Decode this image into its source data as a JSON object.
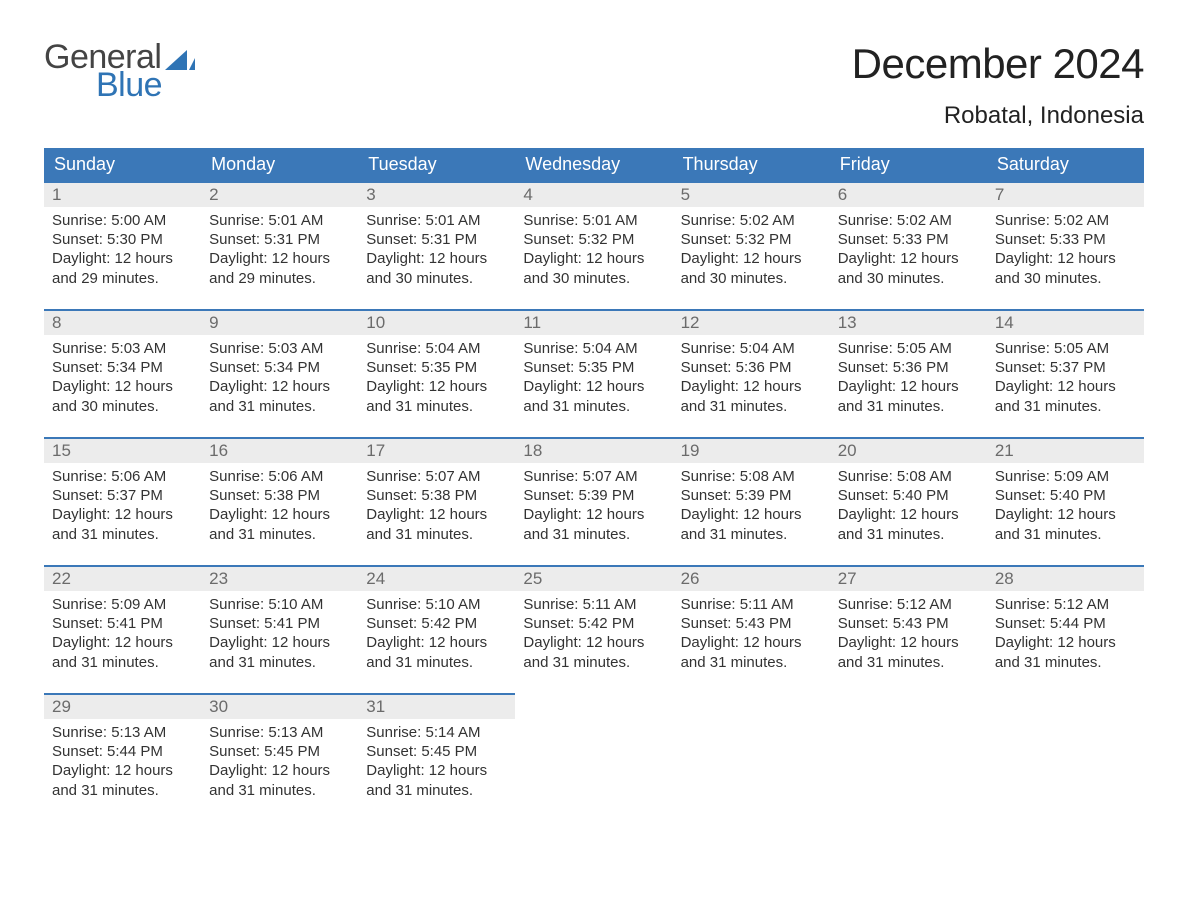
{
  "brand": {
    "word1": "General",
    "word2": "Blue",
    "text_color": "#444444",
    "accent_color": "#2f74b5"
  },
  "title": "December 2024",
  "location": "Robatal, Indonesia",
  "colors": {
    "header_bg": "#3b78b8",
    "header_text": "#ffffff",
    "row_top_border": "#3b78b8",
    "daynum_bg": "#ececec",
    "daynum_text": "#6b6b6b",
    "body_text": "#333333",
    "page_bg": "#ffffff"
  },
  "font": {
    "family": "Arial",
    "title_size_pt": 32,
    "location_size_pt": 18,
    "header_size_pt": 14,
    "body_size_pt": 11
  },
  "weekdays": [
    "Sunday",
    "Monday",
    "Tuesday",
    "Wednesday",
    "Thursday",
    "Friday",
    "Saturday"
  ],
  "labels": {
    "sunrise": "Sunrise:",
    "sunset": "Sunset:",
    "daylight": "Daylight:"
  },
  "grid": {
    "cols": 7,
    "rows": 5,
    "first_weekday_index": 0,
    "days_in_month": 31
  },
  "days": [
    {
      "n": 1,
      "sunrise": "5:00 AM",
      "sunset": "5:30 PM",
      "daylight": "12 hours and 29 minutes."
    },
    {
      "n": 2,
      "sunrise": "5:01 AM",
      "sunset": "5:31 PM",
      "daylight": "12 hours and 29 minutes."
    },
    {
      "n": 3,
      "sunrise": "5:01 AM",
      "sunset": "5:31 PM",
      "daylight": "12 hours and 30 minutes."
    },
    {
      "n": 4,
      "sunrise": "5:01 AM",
      "sunset": "5:32 PM",
      "daylight": "12 hours and 30 minutes."
    },
    {
      "n": 5,
      "sunrise": "5:02 AM",
      "sunset": "5:32 PM",
      "daylight": "12 hours and 30 minutes."
    },
    {
      "n": 6,
      "sunrise": "5:02 AM",
      "sunset": "5:33 PM",
      "daylight": "12 hours and 30 minutes."
    },
    {
      "n": 7,
      "sunrise": "5:02 AM",
      "sunset": "5:33 PM",
      "daylight": "12 hours and 30 minutes."
    },
    {
      "n": 8,
      "sunrise": "5:03 AM",
      "sunset": "5:34 PM",
      "daylight": "12 hours and 30 minutes."
    },
    {
      "n": 9,
      "sunrise": "5:03 AM",
      "sunset": "5:34 PM",
      "daylight": "12 hours and 31 minutes."
    },
    {
      "n": 10,
      "sunrise": "5:04 AM",
      "sunset": "5:35 PM",
      "daylight": "12 hours and 31 minutes."
    },
    {
      "n": 11,
      "sunrise": "5:04 AM",
      "sunset": "5:35 PM",
      "daylight": "12 hours and 31 minutes."
    },
    {
      "n": 12,
      "sunrise": "5:04 AM",
      "sunset": "5:36 PM",
      "daylight": "12 hours and 31 minutes."
    },
    {
      "n": 13,
      "sunrise": "5:05 AM",
      "sunset": "5:36 PM",
      "daylight": "12 hours and 31 minutes."
    },
    {
      "n": 14,
      "sunrise": "5:05 AM",
      "sunset": "5:37 PM",
      "daylight": "12 hours and 31 minutes."
    },
    {
      "n": 15,
      "sunrise": "5:06 AM",
      "sunset": "5:37 PM",
      "daylight": "12 hours and 31 minutes."
    },
    {
      "n": 16,
      "sunrise": "5:06 AM",
      "sunset": "5:38 PM",
      "daylight": "12 hours and 31 minutes."
    },
    {
      "n": 17,
      "sunrise": "5:07 AM",
      "sunset": "5:38 PM",
      "daylight": "12 hours and 31 minutes."
    },
    {
      "n": 18,
      "sunrise": "5:07 AM",
      "sunset": "5:39 PM",
      "daylight": "12 hours and 31 minutes."
    },
    {
      "n": 19,
      "sunrise": "5:08 AM",
      "sunset": "5:39 PM",
      "daylight": "12 hours and 31 minutes."
    },
    {
      "n": 20,
      "sunrise": "5:08 AM",
      "sunset": "5:40 PM",
      "daylight": "12 hours and 31 minutes."
    },
    {
      "n": 21,
      "sunrise": "5:09 AM",
      "sunset": "5:40 PM",
      "daylight": "12 hours and 31 minutes."
    },
    {
      "n": 22,
      "sunrise": "5:09 AM",
      "sunset": "5:41 PM",
      "daylight": "12 hours and 31 minutes."
    },
    {
      "n": 23,
      "sunrise": "5:10 AM",
      "sunset": "5:41 PM",
      "daylight": "12 hours and 31 minutes."
    },
    {
      "n": 24,
      "sunrise": "5:10 AM",
      "sunset": "5:42 PM",
      "daylight": "12 hours and 31 minutes."
    },
    {
      "n": 25,
      "sunrise": "5:11 AM",
      "sunset": "5:42 PM",
      "daylight": "12 hours and 31 minutes."
    },
    {
      "n": 26,
      "sunrise": "5:11 AM",
      "sunset": "5:43 PM",
      "daylight": "12 hours and 31 minutes."
    },
    {
      "n": 27,
      "sunrise": "5:12 AM",
      "sunset": "5:43 PM",
      "daylight": "12 hours and 31 minutes."
    },
    {
      "n": 28,
      "sunrise": "5:12 AM",
      "sunset": "5:44 PM",
      "daylight": "12 hours and 31 minutes."
    },
    {
      "n": 29,
      "sunrise": "5:13 AM",
      "sunset": "5:44 PM",
      "daylight": "12 hours and 31 minutes."
    },
    {
      "n": 30,
      "sunrise": "5:13 AM",
      "sunset": "5:45 PM",
      "daylight": "12 hours and 31 minutes."
    },
    {
      "n": 31,
      "sunrise": "5:14 AM",
      "sunset": "5:45 PM",
      "daylight": "12 hours and 31 minutes."
    }
  ]
}
